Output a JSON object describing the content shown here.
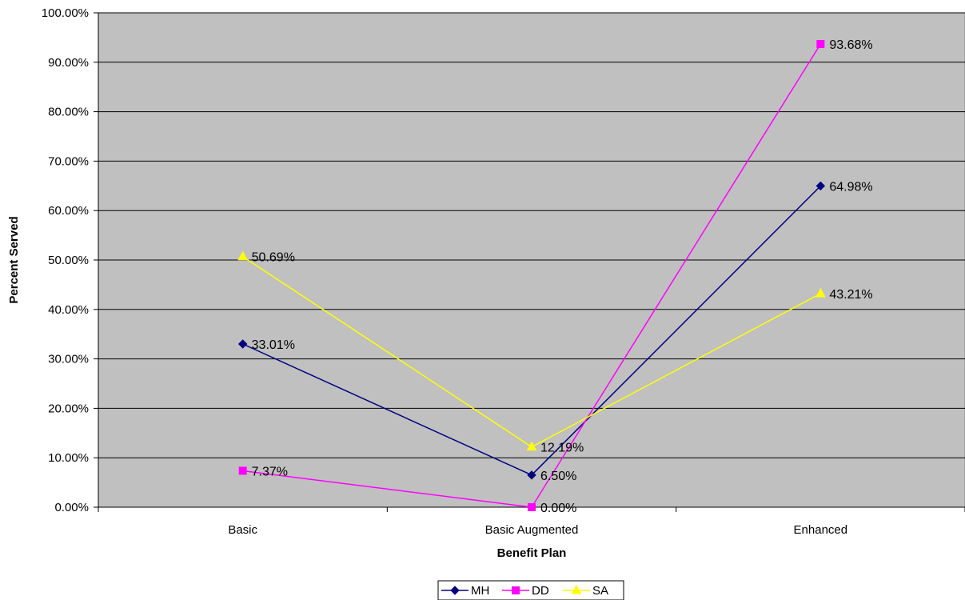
{
  "chart_data": {
    "type": "line",
    "categories": [
      "Basic",
      "Basic Augmented",
      "Enhanced"
    ],
    "series": [
      {
        "name": "MH",
        "values": [
          33.01,
          6.5,
          64.98
        ],
        "labels": [
          "33.01%",
          "6.50%",
          "64.98%"
        ],
        "color": "#000080",
        "marker": "diamond"
      },
      {
        "name": "DD",
        "values": [
          7.37,
          0.0,
          93.68
        ],
        "labels": [
          "7.37%",
          "0.00%",
          "93.68%"
        ],
        "color": "#ff00ff",
        "marker": "square"
      },
      {
        "name": "SA",
        "values": [
          50.69,
          12.19,
          43.21
        ],
        "labels": [
          "50.69%",
          "12.19%",
          "43.21%"
        ],
        "color": "#ffff00",
        "marker": "triangle"
      }
    ],
    "xlabel": "Benefit Plan",
    "ylabel": "Percent Served",
    "ylim": [
      0,
      100
    ],
    "yticks": [
      0,
      10,
      20,
      30,
      40,
      50,
      60,
      70,
      80,
      90,
      100
    ],
    "ytick_labels": [
      "0.00%",
      "10.00%",
      "20.00%",
      "30.00%",
      "40.00%",
      "50.00%",
      "60.00%",
      "70.00%",
      "80.00%",
      "90.00%",
      "100.00%"
    ],
    "grid": true,
    "plot_background": "#c0c0c0",
    "legend_position": "bottom"
  }
}
